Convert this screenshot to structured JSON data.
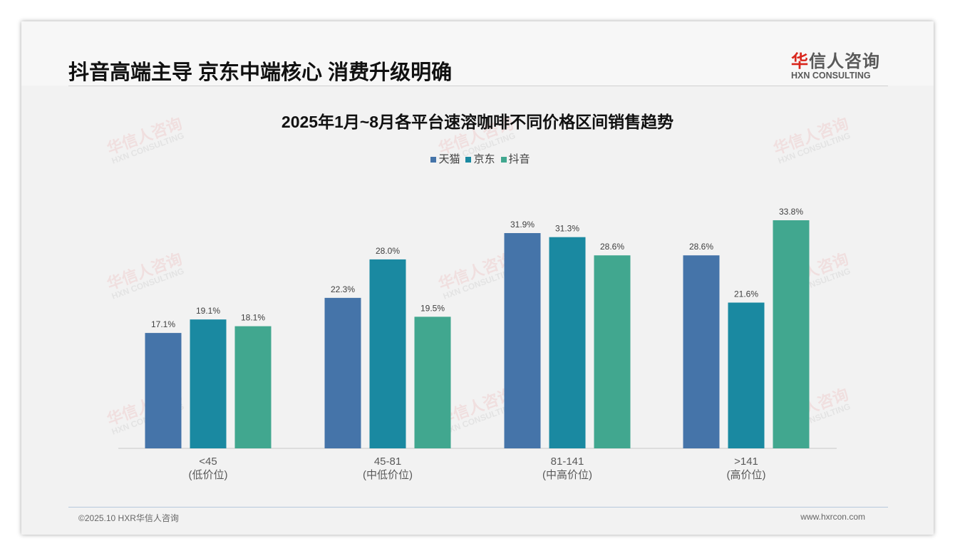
{
  "header": {
    "title": "抖音高端主导 京东中端核心 消费升级明确",
    "logo_cn_accent": "华",
    "logo_cn_rest": "信人咨询",
    "logo_en": "HXN CONSULTING"
  },
  "watermark": {
    "cn": "华信人咨询",
    "en": "HXN CONSULTING"
  },
  "footer": {
    "copyright": "©2025.10 HXR华信人咨询",
    "url": "www.hxrcon.com"
  },
  "chart_data": {
    "type": "bar",
    "title": "2025年1月~8月各平台速溶咖啡不同价格区间销售趋势",
    "categories": [
      "<45",
      "45-81",
      "81-141",
      ">141"
    ],
    "category_sublabels": [
      "(低价位)",
      "(中低价位)",
      "(中高价位)",
      "(高价位)"
    ],
    "series": [
      {
        "name": "天猫",
        "color": "#4574a9",
        "values": [
          17.1,
          22.3,
          31.9,
          28.6
        ]
      },
      {
        "name": "京东",
        "color": "#1a89a1",
        "values": [
          19.1,
          28.0,
          31.3,
          21.6
        ]
      },
      {
        "name": "抖音",
        "color": "#41a78f",
        "values": [
          18.1,
          19.5,
          28.6,
          33.8
        ]
      }
    ],
    "value_format": "%",
    "ylim": [
      0,
      35
    ],
    "legend": "top-center",
    "grid": false
  }
}
